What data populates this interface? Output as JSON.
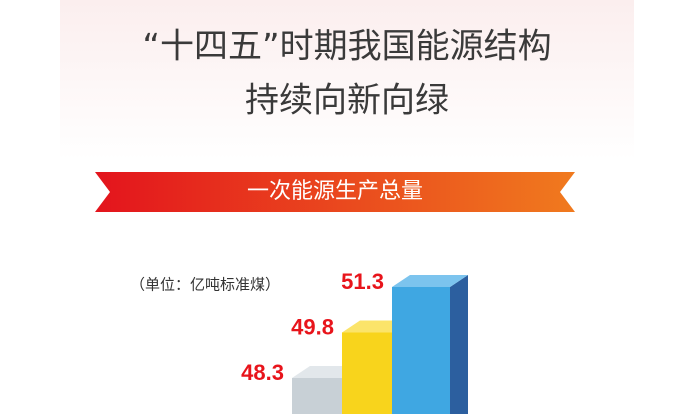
{
  "chart_data": {
    "type": "bar3d",
    "title": [
      "“十四五”时期我国能源结构",
      "持续向新向绿"
    ],
    "subtitle": "一次能源生产总量",
    "unit": "（单位：亿吨标准煤）",
    "categories": [
      null,
      null,
      null
    ],
    "values": [
      48.3,
      49.8,
      51.3
    ],
    "colors": [
      [
        "#c8d0d6",
        "#6d7880",
        "#e2e7eb"
      ],
      [
        "#f8d41c",
        "#d6a000",
        "#fbe46a"
      ],
      [
        "#3fa7e2",
        "#2c5f9f",
        "#7cc4ee"
      ]
    ],
    "label_color": "#e8141b"
  }
}
